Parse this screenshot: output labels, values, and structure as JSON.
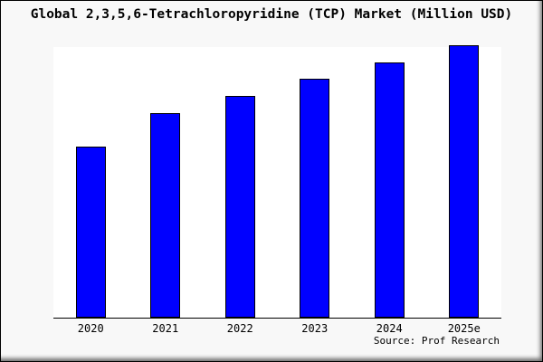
{
  "figure": {
    "title": "Global 2,3,5,6-Tetrachloropyridine (TCP) Market (Million USD)",
    "source": "Source: Prof Research"
  },
  "colors": {
    "bar_fill": "#0000FF",
    "bar_border": "#000000",
    "figure_bg": "#F8F8F8",
    "plot_bg": "#FFFFFF",
    "axis": "#000000",
    "text": "#000000"
  },
  "chart_data": {
    "type": "bar",
    "title": "Global 2,3,5,6-Tetrachloropyridine (TCP) Market (Million USD)",
    "categories": [
      "2020",
      "2021",
      "2022",
      "2023",
      "2024",
      "2025e"
    ],
    "values": [
      62.7,
      75.1,
      81.3,
      87.6,
      93.6,
      100
    ],
    "unit": "relative index estimated from bar heights (no y-axis labels shown; 2025e = 100)",
    "xlabel": "",
    "ylabel": "",
    "ylim": [
      0,
      100
    ],
    "grid": false,
    "legend": false,
    "y_axis_shown": false,
    "source": "Source: Prof Research"
  }
}
